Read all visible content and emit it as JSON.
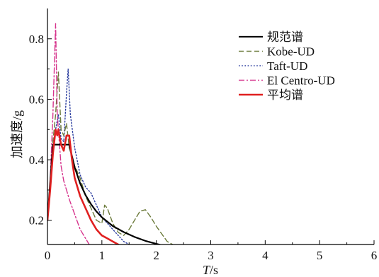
{
  "chart_data": {
    "type": "line",
    "xlabel_italic": "T",
    "xlabel_rest": "/s",
    "ylabel": "加速度/g",
    "xlim": [
      0,
      6
    ],
    "ylim": [
      0.12,
      0.9
    ],
    "x_ticks": [
      0,
      1,
      2,
      3,
      4,
      5,
      6
    ],
    "y_ticks": [
      0.2,
      0.4,
      0.6,
      0.8
    ],
    "grid": false,
    "legend_position": "top-right",
    "series": [
      {
        "name": "规范谱",
        "color": "#000000",
        "style": "solid",
        "points": [
          [
            0,
            0.2
          ],
          [
            0.1,
            0.45
          ],
          [
            0.2,
            0.45
          ],
          [
            0.3,
            0.45
          ],
          [
            0.4,
            0.45
          ],
          [
            0.5,
            0.375
          ],
          [
            0.6,
            0.322
          ],
          [
            0.7,
            0.283
          ],
          [
            0.8,
            0.253
          ],
          [
            0.9,
            0.229
          ],
          [
            1.0,
            0.21
          ],
          [
            1.2,
            0.181
          ],
          [
            1.4,
            0.161
          ],
          [
            1.6,
            0.145
          ],
          [
            1.8,
            0.132
          ],
          [
            2.0,
            0.122
          ],
          [
            2.2,
            0.113
          ],
          [
            2.4,
            0.106
          ],
          [
            2.6,
            0.099
          ],
          [
            2.8,
            0.094
          ],
          [
            3.0,
            0.089
          ],
          [
            3.5,
            0.08
          ],
          [
            4.0,
            0.072
          ],
          [
            4.5,
            0.066
          ],
          [
            5.0,
            0.061
          ],
          [
            5.5,
            0.056
          ],
          [
            6.0,
            0.052
          ]
        ]
      },
      {
        "name": "Kobe-UD",
        "color": "#6b7a3a",
        "style": "dashed",
        "points": [
          [
            0,
            0.2
          ],
          [
            0.05,
            0.32
          ],
          [
            0.1,
            0.46
          ],
          [
            0.15,
            0.55
          ],
          [
            0.2,
            0.69
          ],
          [
            0.25,
            0.5
          ],
          [
            0.3,
            0.48
          ],
          [
            0.35,
            0.52
          ],
          [
            0.4,
            0.44
          ],
          [
            0.5,
            0.38
          ],
          [
            0.6,
            0.34
          ],
          [
            0.7,
            0.28
          ],
          [
            0.8,
            0.24
          ],
          [
            0.9,
            0.2
          ],
          [
            1.0,
            0.19
          ],
          [
            1.05,
            0.25
          ],
          [
            1.1,
            0.24
          ],
          [
            1.2,
            0.19
          ],
          [
            1.3,
            0.16
          ],
          [
            1.4,
            0.15
          ],
          [
            1.5,
            0.17
          ],
          [
            1.6,
            0.2
          ],
          [
            1.7,
            0.23
          ],
          [
            1.8,
            0.235
          ],
          [
            1.9,
            0.21
          ],
          [
            2.0,
            0.18
          ],
          [
            2.2,
            0.13
          ],
          [
            2.4,
            0.11
          ],
          [
            2.6,
            0.085
          ],
          [
            2.8,
            0.075
          ],
          [
            3.0,
            0.07
          ],
          [
            3.3,
            0.06
          ],
          [
            3.5,
            0.055
          ],
          [
            4.0,
            0.05
          ],
          [
            4.5,
            0.045
          ],
          [
            5.0,
            0.04
          ],
          [
            5.5,
            0.037
          ],
          [
            6.0,
            0.032
          ]
        ]
      },
      {
        "name": "Taft-UD",
        "color": "#2a3c9e",
        "style": "dotted",
        "points": [
          [
            0,
            0.2
          ],
          [
            0.05,
            0.3
          ],
          [
            0.1,
            0.42
          ],
          [
            0.15,
            0.5
          ],
          [
            0.2,
            0.55
          ],
          [
            0.25,
            0.47
          ],
          [
            0.3,
            0.46
          ],
          [
            0.35,
            0.62
          ],
          [
            0.38,
            0.7
          ],
          [
            0.42,
            0.55
          ],
          [
            0.5,
            0.44
          ],
          [
            0.6,
            0.35
          ],
          [
            0.7,
            0.31
          ],
          [
            0.8,
            0.29
          ],
          [
            0.9,
            0.25
          ],
          [
            1.0,
            0.21
          ],
          [
            1.1,
            0.19
          ],
          [
            1.2,
            0.17
          ],
          [
            1.3,
            0.15
          ],
          [
            1.4,
            0.13
          ],
          [
            1.5,
            0.12
          ],
          [
            1.6,
            0.11
          ],
          [
            1.8,
            0.1
          ],
          [
            2.0,
            0.095
          ],
          [
            2.2,
            0.09
          ],
          [
            2.4,
            0.08
          ],
          [
            2.6,
            0.07
          ],
          [
            2.8,
            0.065
          ],
          [
            3.0,
            0.058
          ],
          [
            3.2,
            0.05
          ],
          [
            3.4,
            0.06
          ],
          [
            3.6,
            0.05
          ],
          [
            3.8,
            0.045
          ],
          [
            4.0,
            0.04
          ],
          [
            4.5,
            0.037
          ],
          [
            5.0,
            0.034
          ],
          [
            5.5,
            0.032
          ],
          [
            6.0,
            0.03
          ]
        ]
      },
      {
        "name": "El Centro-UD",
        "color": "#d6338c",
        "style": "dashdot",
        "points": [
          [
            0,
            0.2
          ],
          [
            0.05,
            0.33
          ],
          [
            0.1,
            0.55
          ],
          [
            0.15,
            0.85
          ],
          [
            0.18,
            0.55
          ],
          [
            0.2,
            0.5
          ],
          [
            0.25,
            0.38
          ],
          [
            0.3,
            0.33
          ],
          [
            0.35,
            0.3
          ],
          [
            0.4,
            0.27
          ],
          [
            0.5,
            0.22
          ],
          [
            0.6,
            0.17
          ],
          [
            0.7,
            0.14
          ],
          [
            0.8,
            0.11
          ],
          [
            0.9,
            0.09
          ],
          [
            1.0,
            0.075
          ],
          [
            1.2,
            0.065
          ],
          [
            1.4,
            0.055
          ],
          [
            1.6,
            0.05
          ],
          [
            1.8,
            0.04
          ],
          [
            2.0,
            0.035
          ],
          [
            2.5,
            0.03
          ],
          [
            3.0,
            0.03
          ],
          [
            3.5,
            0.028
          ],
          [
            4.0,
            0.025
          ],
          [
            4.5,
            0.022
          ],
          [
            5.0,
            0.02
          ],
          [
            5.5,
            0.02
          ],
          [
            6.0,
            0.018
          ]
        ]
      },
      {
        "name": "平均谱",
        "color": "#e02020",
        "style": "solid",
        "points": [
          [
            0,
            0.2
          ],
          [
            0.05,
            0.3
          ],
          [
            0.1,
            0.42
          ],
          [
            0.15,
            0.5
          ],
          [
            0.18,
            0.48
          ],
          [
            0.2,
            0.5
          ],
          [
            0.25,
            0.45
          ],
          [
            0.3,
            0.43
          ],
          [
            0.35,
            0.48
          ],
          [
            0.4,
            0.48
          ],
          [
            0.45,
            0.4
          ],
          [
            0.5,
            0.34
          ],
          [
            0.6,
            0.28
          ],
          [
            0.7,
            0.24
          ],
          [
            0.8,
            0.2
          ],
          [
            0.9,
            0.17
          ],
          [
            1.0,
            0.15
          ],
          [
            1.1,
            0.14
          ],
          [
            1.2,
            0.13
          ],
          [
            1.3,
            0.12
          ],
          [
            1.4,
            0.11
          ],
          [
            1.5,
            0.1
          ],
          [
            1.6,
            0.105
          ],
          [
            1.7,
            0.11
          ],
          [
            1.8,
            0.11
          ],
          [
            1.9,
            0.1
          ],
          [
            2.0,
            0.09
          ],
          [
            2.2,
            0.075
          ],
          [
            2.4,
            0.06
          ],
          [
            2.6,
            0.055
          ],
          [
            2.8,
            0.05
          ],
          [
            3.0,
            0.045
          ],
          [
            3.3,
            0.04
          ],
          [
            3.6,
            0.035
          ],
          [
            4.0,
            0.033
          ],
          [
            4.5,
            0.03
          ],
          [
            5.0,
            0.028
          ],
          [
            5.5,
            0.025
          ],
          [
            6.0,
            0.022
          ]
        ]
      }
    ]
  }
}
